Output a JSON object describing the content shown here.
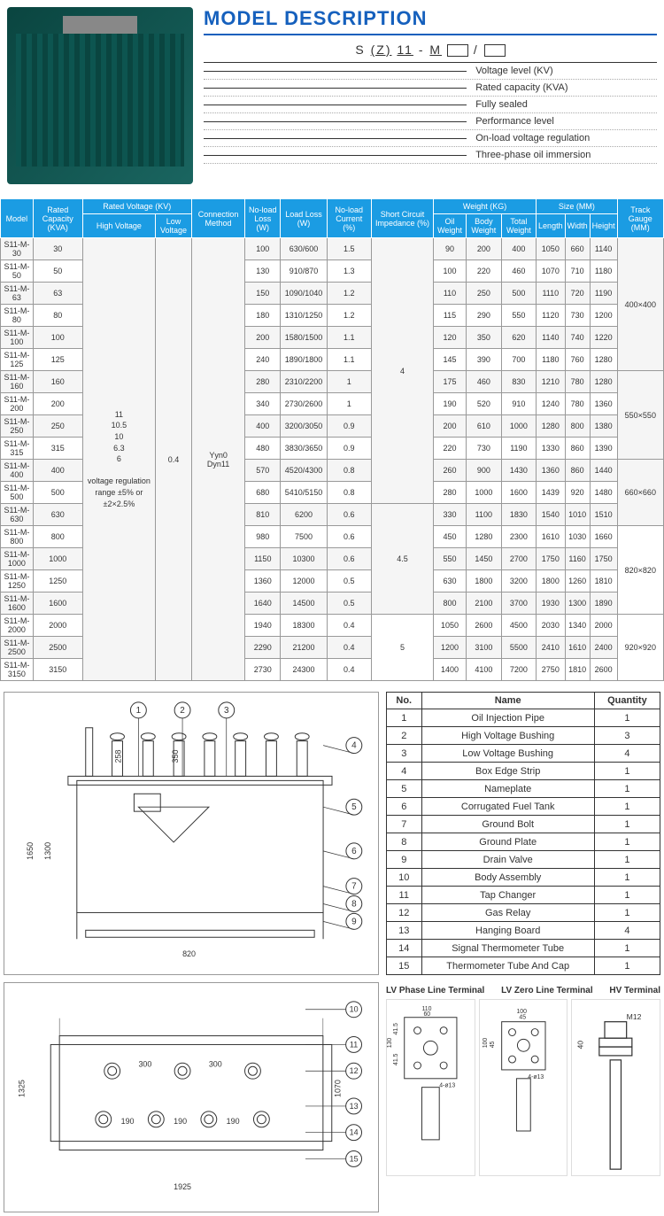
{
  "header": {
    "title": "MODEL DESCRIPTION",
    "code_parts": [
      "S",
      "(Z)",
      "11",
      "-",
      "M"
    ],
    "descriptions": [
      "Voltage level (KV)",
      "Rated capacity (KVA)",
      "Fully sealed",
      "Performance level",
      "On-load voltage regulation",
      "Three-phase oil immersion"
    ]
  },
  "spec": {
    "headers_top": [
      "Model",
      "Rated Capacity (KVA)",
      "Rated Voltage (KV)",
      "Connection Method",
      "No-load Loss (W)",
      "Load Loss (W)",
      "No-load Current (%)",
      "Short Circuit Impedance (%)",
      "Weight (KG)",
      "Size (MM)",
      "Track Gauge (MM)"
    ],
    "voltage_sub": [
      "High Voltage",
      "Low Voltage"
    ],
    "weight_sub": [
      "Oil Weight",
      "Body Weight",
      "Total Weight"
    ],
    "size_sub": [
      "Length",
      "Width",
      "Height"
    ],
    "hv_text": "11\n10.5\n10\n6.3\n6\n\nvoltage regulation range ±5% or ±2×2.5%",
    "lv_text": "0.4",
    "conn_text": "Yyn0\nDyn11",
    "rows": [
      {
        "m": "S11-M-30",
        "cap": "30",
        "nl": "100",
        "ll": "630/600",
        "nc": "1.5",
        "imp": "4",
        "ow": "90",
        "bw": "200",
        "tw": "400",
        "l": "1050",
        "w": "660",
        "h": "1140",
        "tg": "400×400"
      },
      {
        "m": "S11-M-50",
        "cap": "50",
        "nl": "130",
        "ll": "910/870",
        "nc": "1.3",
        "imp": "",
        "ow": "100",
        "bw": "220",
        "tw": "460",
        "l": "1070",
        "w": "710",
        "h": "1180",
        "tg": ""
      },
      {
        "m": "S11-M-63",
        "cap": "63",
        "nl": "150",
        "ll": "1090/1040",
        "nc": "1.2",
        "imp": "",
        "ow": "110",
        "bw": "250",
        "tw": "500",
        "l": "1110",
        "w": "720",
        "h": "1190",
        "tg": ""
      },
      {
        "m": "S11-M-80",
        "cap": "80",
        "nl": "180",
        "ll": "1310/1250",
        "nc": "1.2",
        "imp": "",
        "ow": "115",
        "bw": "290",
        "tw": "550",
        "l": "1120",
        "w": "730",
        "h": "1200",
        "tg": ""
      },
      {
        "m": "S11-M-100",
        "cap": "100",
        "nl": "200",
        "ll": "1580/1500",
        "nc": "1.1",
        "imp": "",
        "ow": "120",
        "bw": "350",
        "tw": "620",
        "l": "1140",
        "w": "740",
        "h": "1220",
        "tg": ""
      },
      {
        "m": "S11-M-125",
        "cap": "125",
        "nl": "240",
        "ll": "1890/1800",
        "nc": "1.1",
        "imp": "",
        "ow": "145",
        "bw": "390",
        "tw": "700",
        "l": "1180",
        "w": "760",
        "h": "1280",
        "tg": ""
      },
      {
        "m": "S11-M-160",
        "cap": "160",
        "nl": "280",
        "ll": "2310/2200",
        "nc": "1",
        "imp": "",
        "ow": "175",
        "bw": "460",
        "tw": "830",
        "l": "1210",
        "w": "780",
        "h": "1280",
        "tg": "550×550"
      },
      {
        "m": "S11-M-200",
        "cap": "200",
        "nl": "340",
        "ll": "2730/2600",
        "nc": "1",
        "imp": "",
        "ow": "190",
        "bw": "520",
        "tw": "910",
        "l": "1240",
        "w": "780",
        "h": "1360",
        "tg": ""
      },
      {
        "m": "S11-M-250",
        "cap": "250",
        "nl": "400",
        "ll": "3200/3050",
        "nc": "0.9",
        "imp": "",
        "ow": "200",
        "bw": "610",
        "tw": "1000",
        "l": "1280",
        "w": "800",
        "h": "1380",
        "tg": ""
      },
      {
        "m": "S11-M-315",
        "cap": "315",
        "nl": "480",
        "ll": "3830/3650",
        "nc": "0.9",
        "imp": "",
        "ow": "220",
        "bw": "730",
        "tw": "1190",
        "l": "1330",
        "w": "860",
        "h": "1390",
        "tg": ""
      },
      {
        "m": "S11-M-400",
        "cap": "400",
        "nl": "570",
        "ll": "4520/4300",
        "nc": "0.8",
        "imp": "",
        "ow": "260",
        "bw": "900",
        "tw": "1430",
        "l": "1360",
        "w": "860",
        "h": "1440",
        "tg": "660×660"
      },
      {
        "m": "S11-M-500",
        "cap": "500",
        "nl": "680",
        "ll": "5410/5150",
        "nc": "0.8",
        "imp": "",
        "ow": "280",
        "bw": "1000",
        "tw": "1600",
        "l": "1439",
        "w": "920",
        "h": "1480",
        "tg": ""
      },
      {
        "m": "S11-M-630",
        "cap": "630",
        "nl": "810",
        "ll": "6200",
        "nc": "0.6",
        "imp": "4.5",
        "ow": "330",
        "bw": "1100",
        "tw": "1830",
        "l": "1540",
        "w": "1010",
        "h": "1510",
        "tg": ""
      },
      {
        "m": "S11-M-800",
        "cap": "800",
        "nl": "980",
        "ll": "7500",
        "nc": "0.6",
        "imp": "",
        "ow": "450",
        "bw": "1280",
        "tw": "2300",
        "l": "1610",
        "w": "1030",
        "h": "1660",
        "tg": "820×820"
      },
      {
        "m": "S11-M-1000",
        "cap": "1000",
        "nl": "1150",
        "ll": "10300",
        "nc": "0.6",
        "imp": "",
        "ow": "550",
        "bw": "1450",
        "tw": "2700",
        "l": "1750",
        "w": "1160",
        "h": "1750",
        "tg": ""
      },
      {
        "m": "S11-M-1250",
        "cap": "1250",
        "nl": "1360",
        "ll": "12000",
        "nc": "0.5",
        "imp": "",
        "ow": "630",
        "bw": "1800",
        "tw": "3200",
        "l": "1800",
        "w": "1260",
        "h": "1810",
        "tg": ""
      },
      {
        "m": "S11-M-1600",
        "cap": "1600",
        "nl": "1640",
        "ll": "14500",
        "nc": "0.5",
        "imp": "",
        "ow": "800",
        "bw": "2100",
        "tw": "3700",
        "l": "1930",
        "w": "1300",
        "h": "1890",
        "tg": ""
      },
      {
        "m": "S11-M-2000",
        "cap": "2000",
        "nl": "1940",
        "ll": "18300",
        "nc": "0.4",
        "imp": "5",
        "ow": "1050",
        "bw": "2600",
        "tw": "4500",
        "l": "2030",
        "w": "1340",
        "h": "2000",
        "tg": "920×920"
      },
      {
        "m": "S11-M-2500",
        "cap": "2500",
        "nl": "2290",
        "ll": "21200",
        "nc": "0.4",
        "imp": "",
        "ow": "1200",
        "bw": "3100",
        "tw": "5500",
        "l": "2410",
        "w": "1610",
        "h": "2400",
        "tg": ""
      },
      {
        "m": "S11-M-3150",
        "cap": "3150",
        "nl": "2730",
        "ll": "24300",
        "nc": "0.4",
        "imp": "",
        "ow": "1400",
        "bw": "4100",
        "tw": "7200",
        "l": "2750",
        "w": "1810",
        "h": "2600",
        "tg": ""
      }
    ]
  },
  "parts": {
    "headers": [
      "No.",
      "Name",
      "Quantity"
    ],
    "rows": [
      [
        "1",
        "Oil Injection Pipe",
        "1"
      ],
      [
        "2",
        "High Voltage Bushing",
        "3"
      ],
      [
        "3",
        "Low Voltage Bushing",
        "4"
      ],
      [
        "4",
        "Box Edge Strip",
        "1"
      ],
      [
        "5",
        "Nameplate",
        "1"
      ],
      [
        "6",
        "Corrugated Fuel Tank",
        "1"
      ],
      [
        "7",
        "Ground Bolt",
        "1"
      ],
      [
        "8",
        "Ground Plate",
        "1"
      ],
      [
        "9",
        "Drain Valve",
        "1"
      ],
      [
        "10",
        "Body Assembly",
        "1"
      ],
      [
        "11",
        "Tap Changer",
        "1"
      ],
      [
        "12",
        "Gas Relay",
        "1"
      ],
      [
        "13",
        "Hanging Board",
        "4"
      ],
      [
        "14",
        "Signal Thermometer Tube",
        "1"
      ],
      [
        "15",
        "Thermometer Tube And Cap",
        "1"
      ]
    ]
  },
  "terminals": {
    "labels": [
      "LV Phase Line Terminal",
      "LV Zero Line Terminal",
      "HV Terminal"
    ],
    "dims": {
      "t1": [
        "110",
        "60",
        "130",
        "41.5",
        "41.5",
        "4-ø13"
      ],
      "t2": [
        "100",
        "45",
        "100",
        "45",
        "4-ø13"
      ],
      "t3": [
        "M12",
        "40"
      ]
    }
  },
  "diagram_dims": {
    "side": {
      "h1": "1650",
      "h2": "1300",
      "w": "820",
      "b1": "258",
      "b2": "350"
    },
    "top": {
      "h": "1325",
      "h2": "1070",
      "w": "1925",
      "s1": "300",
      "s2": "300",
      "s3": "190",
      "s4": "190",
      "s5": "190"
    }
  }
}
